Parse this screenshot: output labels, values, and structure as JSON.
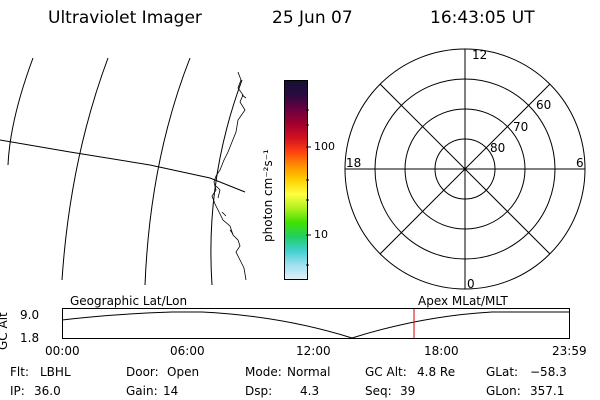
{
  "header": {
    "instrument": "Ultraviolet Imager",
    "date": "25 Jun 07",
    "time": "16:43:05 UT"
  },
  "colorbar": {
    "label": "photon cm⁻²s⁻¹",
    "ticks": [
      "100",
      "10"
    ],
    "colors": [
      "#151035",
      "#2a0a40",
      "#6a0040",
      "#a00030",
      "#d01020",
      "#ff4010",
      "#ff9000",
      "#ffd000",
      "#ffff40",
      "#b0f020",
      "#40e000",
      "#20d060",
      "#40d0d0",
      "#a0e0f0",
      "#e0f0f8"
    ]
  },
  "polar": {
    "mlt_labels": {
      "top": "12",
      "bottom": "0",
      "left": "18",
      "right": "6"
    },
    "lat_labels": [
      "60",
      "70",
      "80"
    ]
  },
  "orbit": {
    "ylabel": "GC Alt",
    "y_ticks": [
      "9.0",
      "1.8"
    ],
    "left_label": "Geographic Lat/Lon",
    "right_label": "Apex MLat/MLT",
    "x_ticks": [
      "00:00",
      "06:00",
      "12:00",
      "18:00",
      "23:59"
    ],
    "current_time_color": "#e00000"
  },
  "info": {
    "flt_label": "Flt:",
    "flt": "LBHL",
    "ip_label": "IP:",
    "ip": "36.0",
    "door_label": "Door:",
    "door": "Open",
    "gain_label": "Gain:",
    "gain": "14",
    "mode_label": "Mode:",
    "mode": "Normal",
    "dsp_label": "Dsp:",
    "dsp": "4.3",
    "gcalt_label": "GC Alt:",
    "gcalt": "4.8 Re",
    "seq_label": "Seq:",
    "seq": "39",
    "glat_label": "GLat:",
    "glat": "−58.3",
    "glon_label": "GLon:",
    "glon": "357.1"
  }
}
